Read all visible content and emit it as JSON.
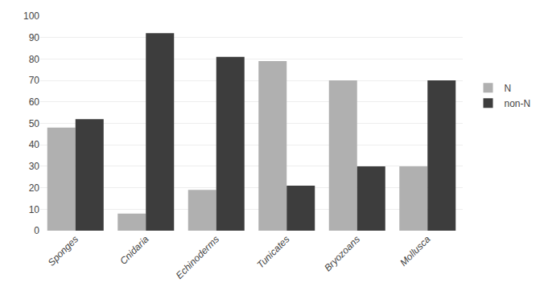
{
  "chart_data": {
    "type": "bar",
    "categories": [
      "Sponges",
      "Cnidaria",
      "Echinoderms",
      "Tunicates",
      "Bryozoans",
      "Mollusca"
    ],
    "series": [
      {
        "name": "N",
        "color": "#b0b0b0",
        "values": [
          48,
          8,
          19,
          79,
          70,
          30
        ]
      },
      {
        "name": "non-N",
        "color": "#3d3d3d",
        "values": [
          52,
          92,
          81,
          21,
          30,
          70
        ]
      }
    ],
    "ylim": [
      0,
      100
    ],
    "yticks": [
      0,
      10,
      20,
      30,
      40,
      50,
      60,
      70,
      80,
      90,
      100
    ],
    "grid": true,
    "legend": "right"
  }
}
